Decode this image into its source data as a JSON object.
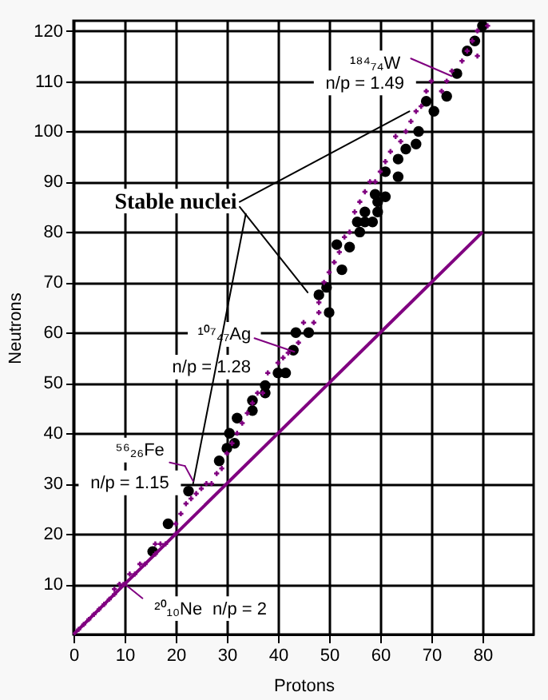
{
  "chart_data": {
    "type": "scatter",
    "xlabel": "Protons",
    "ylabel": "Neutrons",
    "xlim": [
      0,
      90
    ],
    "xticks": [
      0,
      10,
      20,
      30,
      40,
      50,
      60,
      70,
      80
    ],
    "ylim": [
      0,
      122
    ],
    "yticks": [
      10,
      20,
      30,
      40,
      50,
      60,
      70,
      80,
      90,
      100,
      110,
      120
    ],
    "grid": true,
    "series": [
      {
        "marker": "circle",
        "color": "#000000",
        "x": [
          80,
          78.5,
          77,
          75,
          73,
          70.5,
          69,
          67.5,
          67,
          65,
          63.5,
          63.5,
          61,
          61,
          59,
          59.5,
          59.5,
          57,
          55.5,
          57,
          58.5,
          56,
          51.5,
          54,
          52.5,
          49.5,
          48,
          50,
          43.5,
          46,
          43,
          40,
          41.5,
          37.5,
          37.5,
          35,
          35,
          32,
          30.5,
          31.5,
          30,
          28.5,
          22.5,
          18.5,
          15.5
        ],
        "values": [
          121,
          118,
          116,
          111.5,
          107,
          104,
          106,
          100,
          97.5,
          96.5,
          94.5,
          91,
          92,
          87,
          87.5,
          86,
          84,
          84,
          82,
          82,
          82,
          80,
          77.5,
          77,
          72.5,
          69,
          67.5,
          64,
          60,
          60,
          56.5,
          52,
          52,
          49.5,
          48,
          46.5,
          44.5,
          43,
          40,
          38,
          37,
          34.5,
          28.5,
          22,
          16.5
        ]
      },
      {
        "marker": "cross",
        "color": "#800080",
        "x": [
          1,
          2,
          3,
          4,
          5,
          6,
          7,
          8,
          8,
          9,
          10,
          11,
          12,
          13,
          14,
          16,
          16,
          17,
          18,
          20,
          20,
          21,
          22,
          23,
          24,
          25,
          26,
          27,
          28,
          29,
          30,
          31,
          32,
          33,
          34,
          35,
          36,
          37,
          38,
          40,
          41,
          42,
          44,
          45,
          47,
          48,
          48,
          49,
          50,
          51,
          52,
          53,
          54,
          55,
          56,
          57,
          58,
          59,
          60,
          61,
          62,
          63,
          64,
          65,
          66,
          67,
          68,
          69,
          70,
          72,
          73,
          74,
          76,
          77,
          78,
          79,
          81,
          79
        ],
        "values": [
          1,
          2,
          3,
          4,
          5,
          6,
          7,
          8,
          9,
          10,
          10,
          12,
          12,
          14,
          14,
          16,
          18,
          18,
          18,
          20,
          22,
          24,
          26,
          27,
          28,
          29,
          30,
          30,
          32,
          33,
          36,
          38,
          40,
          42,
          44,
          46,
          48,
          48,
          52,
          54,
          55,
          56,
          58,
          62,
          62,
          64,
          66,
          70,
          72,
          74,
          76,
          79,
          80,
          84,
          86,
          88,
          90,
          90,
          92,
          94,
          96,
          99,
          98,
          100,
          102,
          104,
          105,
          108,
          110,
          108,
          110,
          112,
          114,
          116,
          118,
          120,
          121,
          115
        ]
      },
      {
        "type": "line",
        "color": "#800080",
        "x": [
          0,
          80
        ],
        "values": [
          0,
          80
        ]
      }
    ],
    "annotations": [
      {
        "text": "Stable nuclei",
        "x": 45.8,
        "y": 68
      },
      {
        "text": "¹⁸⁴₇₄W",
        "x": 74,
        "y": 111
      },
      "n/p = 1.49",
      {
        "text": "¹⁰⁷₄₇Ag",
        "x": 43.2,
        "y": 56.2
      },
      "n/p = 1.28",
      {
        "text": "⁵⁶₂₆Fe",
        "x": 23.4,
        "y": 30.5
      },
      "n/p = 1.15",
      {
        "text": "²⁰₁₀Ne",
        "x": 9.7,
        "y": 10.3
      },
      "n/p = 2"
    ]
  }
}
